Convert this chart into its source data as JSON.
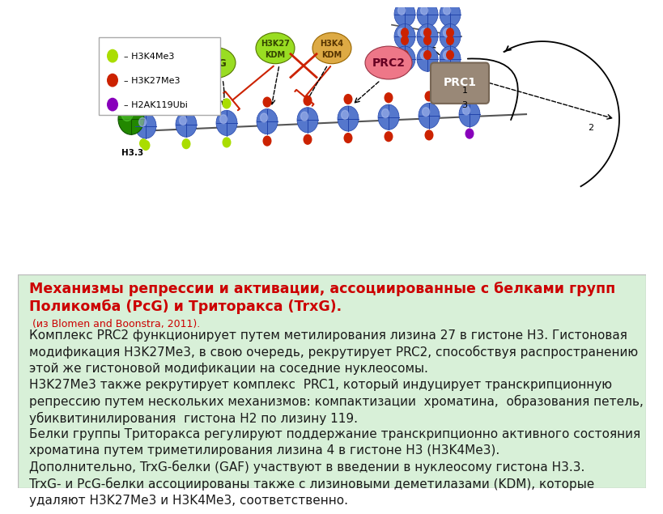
{
  "title_bold": "Механизмы репрессии и активации, ассоциированные с белками групп\nПоликомба (PcG) и Триторакса (TrxG).",
  "title_normal": " (из Blomen and Boonstra, 2011).",
  "title_color": "#cc0000",
  "title_fontsize": 12.5,
  "body_text": "Комплекс PRC2 функционирует путем метилирования лизина 27 в гистоне H3. Гистоновая\nмодификация H3K27Me3, в свою очередь, рекрутирует PRC2, способствуя распространению\nэтой же гистоновой модификации на соседние нуклеосомы.\nH3K27Me3 также рекрутирует комплекс  PRC1, который индуцирует транскрипционную\nрепрессию путем нескольких механизмов: компактизации  хроматина,  образования петель,\nубиквитинилирования  гистона H2 по лизину 119.\nБелки группы Триторакса регулируют поддержание транскрипционно активного состояния\nхроматина путем триметилирования лизина 4 в гистоне H3 (H3K4Me3).\nДополнительно, TrxG-белки (GAF) участвуют в введении в нуклеосому гистона H3.3.\nTrxG- и PcG-белки ассоциированы также с лизиновыми деметилазами (KDM), которые\nудаляют H3K27Me3 и H3K4Me3, соответственно.",
  "body_color": "#1a1a1a",
  "body_fontsize": 11.0,
  "bg_top": "#ffffff",
  "bg_bottom": "#d8f0d8",
  "fig_width": 8.0,
  "fig_height": 6.0,
  "nuc_color": "#5577cc",
  "nuc_shine": "#aabbee",
  "green_dot": "#aadd00",
  "red_dot": "#cc2200",
  "purple_dot": "#8800bb",
  "h33_color": "#228800",
  "trxg_color": "#99dd22",
  "kdm27_color": "#99dd22",
  "kdm4_color": "#ddaa44",
  "prc2_color": "#ee7788",
  "prc1_color": "#998877",
  "legend_border": "#aaaaaa"
}
